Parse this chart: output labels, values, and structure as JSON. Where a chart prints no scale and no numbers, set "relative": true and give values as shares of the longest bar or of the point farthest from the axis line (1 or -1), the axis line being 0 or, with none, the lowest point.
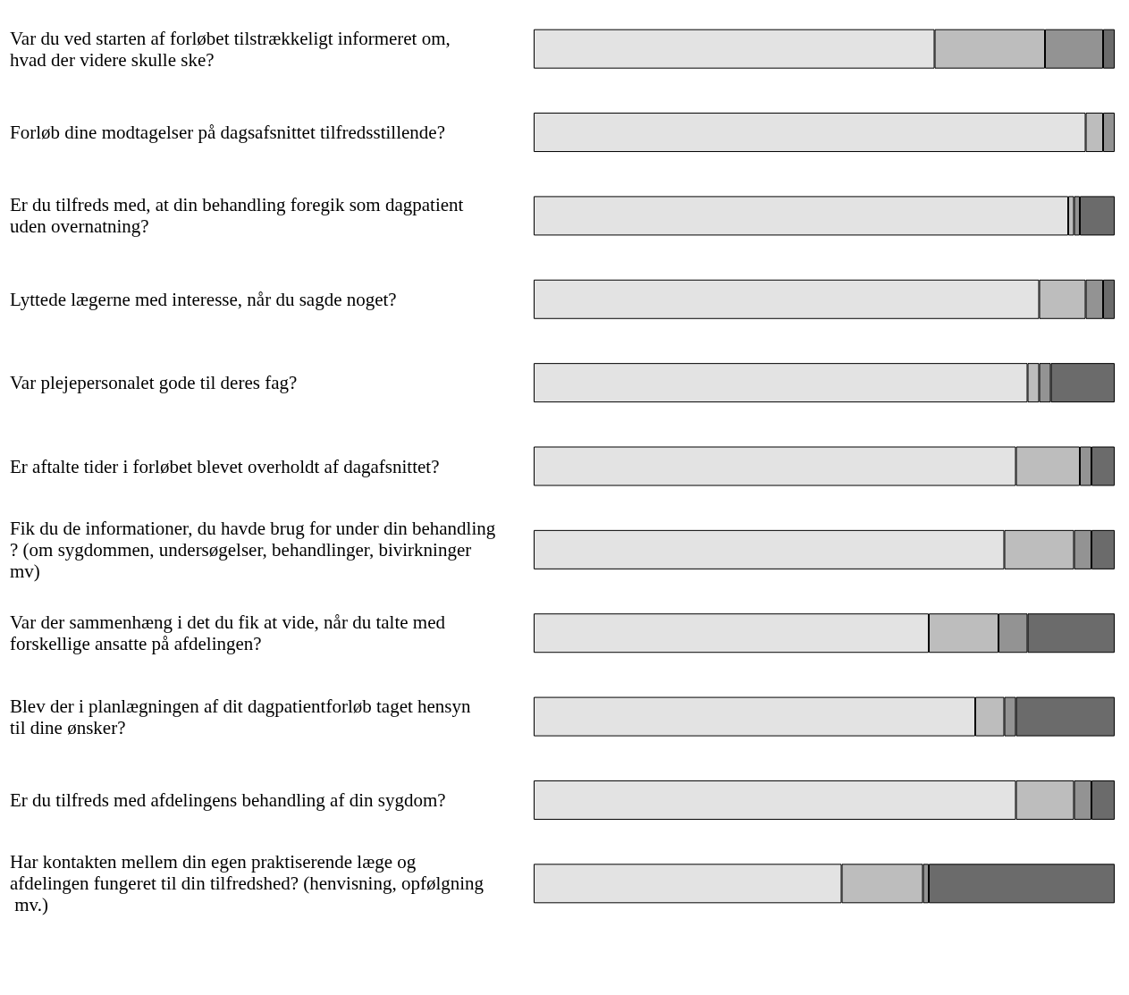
{
  "chart_data": {
    "type": "bar",
    "orientation": "horizontal",
    "stacked": true,
    "relative": true,
    "categories": [
      "Var du ved starten af forløbet tilstrækkeligt informeret om, hvad der videre skulle ske?",
      "Forløb dine modtagelser på dagsafsnittet tilfredsstillende?",
      "Er du tilfreds med, at din behandling foregik som dagpatient uden overnatning?",
      "Lyttede lægerne med interesse, når du sagde noget?",
      "Var plejepersonalet gode til deres fag?",
      "Er aftalte tider i forløbet blevet overholdt af dagafsnittet?",
      "Fik du de informationer, du havde brug for under din behandling? (om sygdommen, undersøgelser, behandlinger, bivirkninger mv)",
      "Var der sammenhæng i det du fik at vide, når du talte med forskellige ansatte på afdelingen?",
      "Blev der i planlægningen af dit dagpatientforløb taget hensyn til dine ønsker?",
      "Er du tilfreds med afdelingens behandling af din sygdom?",
      "Har kontakten mellem din egen praktiserende læge og afdelingen fungeret til din tilfredshed? (henvisning, opfølgning mv.)"
    ],
    "series": [
      {
        "color": "#e3e3e3",
        "values": [
          0.69,
          0.95,
          0.92,
          0.87,
          0.85,
          0.83,
          0.81,
          0.68,
          0.76,
          0.83,
          0.53
        ]
      },
      {
        "color": "#bdbdbd",
        "values": [
          0.19,
          0.03,
          0.01,
          0.08,
          0.02,
          0.11,
          0.12,
          0.12,
          0.05,
          0.1,
          0.14
        ]
      },
      {
        "color": "#939393",
        "values": [
          0.1,
          0.02,
          0.01,
          0.03,
          0.02,
          0.02,
          0.03,
          0.05,
          0.02,
          0.03,
          0.01
        ]
      },
      {
        "color": "#6b6b6b",
        "values": [
          0.02,
          null,
          0.06,
          0.02,
          0.11,
          0.04,
          0.04,
          0.15,
          0.17,
          0.04,
          0.32
        ]
      }
    ]
  }
}
